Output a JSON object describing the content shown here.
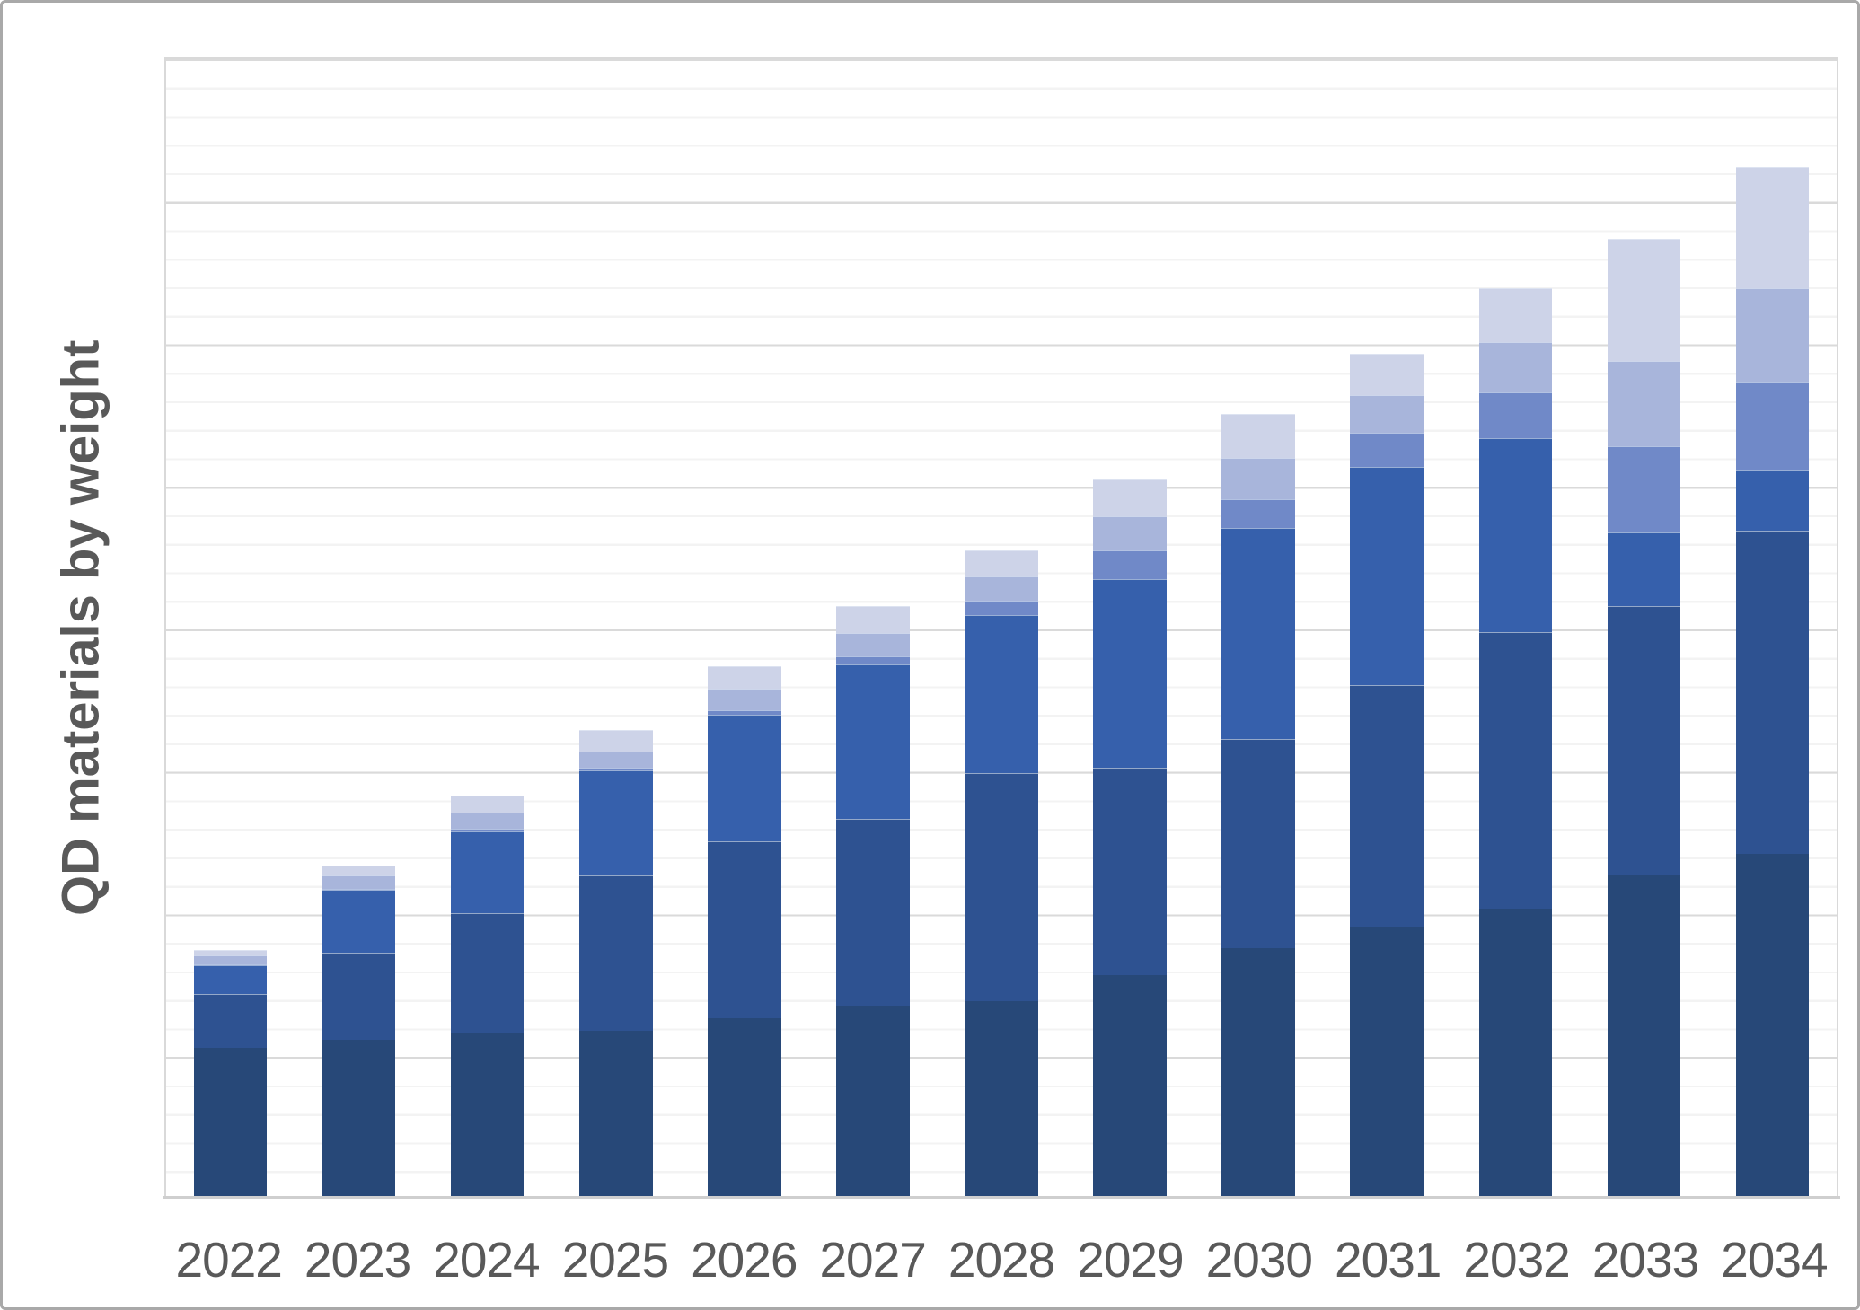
{
  "chart": {
    "y_axis_title": "QD materials by weight",
    "y_axis_tick_labels": "none",
    "legend": "none",
    "plot_background": "#ffffff",
    "gridline_minor_color": "#f3f3f3",
    "gridline_major_color": "#dadada",
    "axis_line_color": "#cfcfcf",
    "outer_border_color": "#a9a9a9",
    "label_color": "#595959"
  },
  "chart_data": {
    "type": "bar",
    "stacked": true,
    "title": "",
    "xlabel": "",
    "ylabel": "QD materials by weight",
    "categories": [
      "2022",
      "2023",
      "2024",
      "2025",
      "2026",
      "2027",
      "2028",
      "2029",
      "2030",
      "2031",
      "2032",
      "2033",
      "2034"
    ],
    "ylim": [
      0,
      40
    ],
    "y_gridline_minor_interval": 1,
    "y_gridline_major_interval": 5,
    "grid": "on",
    "legend_position": "none",
    "note": "No numeric y-axis tick labels are shown in the figure; values below are expressed in y-gridline units (1 unit = 1 minor gridline).",
    "series": [
      {
        "name": "segment-1-darkest-navy",
        "color": "#274878",
        "values": [
          5.25,
          5.55,
          5.75,
          5.85,
          6.3,
          6.75,
          6.9,
          7.8,
          8.75,
          9.5,
          10.15,
          11.3,
          12.05
        ]
      },
      {
        "name": "segment-2-dark-blue",
        "color": "#2e5291",
        "values": [
          1.9,
          3.05,
          4.25,
          5.45,
          6.2,
          6.55,
          8.0,
          7.3,
          7.35,
          8.5,
          9.7,
          9.45,
          11.35
        ]
      },
      {
        "name": "segment-3-royal-blue",
        "color": "#3660ac",
        "values": [
          1.0,
          2.2,
          2.85,
          3.7,
          4.45,
          5.4,
          5.55,
          6.6,
          7.4,
          7.65,
          6.8,
          2.6,
          2.1
        ]
      },
      {
        "name": "segment-4-periwinkle",
        "color": "#7089c8",
        "values": [
          0.05,
          0.05,
          0.1,
          0.1,
          0.15,
          0.3,
          0.5,
          1.0,
          1.0,
          1.2,
          1.6,
          3.0,
          3.1
        ]
      },
      {
        "name": "segment-5-light-blue-gray",
        "color": "#a8b5db",
        "values": [
          0.3,
          0.45,
          0.55,
          0.55,
          0.75,
          0.8,
          0.85,
          1.2,
          1.45,
          1.3,
          1.75,
          3.0,
          3.3
        ]
      },
      {
        "name": "segment-6-pale-lavender",
        "color": "#cdd3e8",
        "values": [
          0.2,
          0.35,
          0.6,
          0.75,
          0.8,
          0.95,
          0.9,
          1.3,
          1.55,
          1.45,
          1.9,
          4.3,
          4.25
        ]
      }
    ],
    "totals": [
      8.7,
      11.65,
      14.1,
      16.4,
      18.65,
      20.75,
      22.7,
      25.2,
      27.5,
      29.6,
      31.9,
      33.65,
      36.15
    ]
  }
}
